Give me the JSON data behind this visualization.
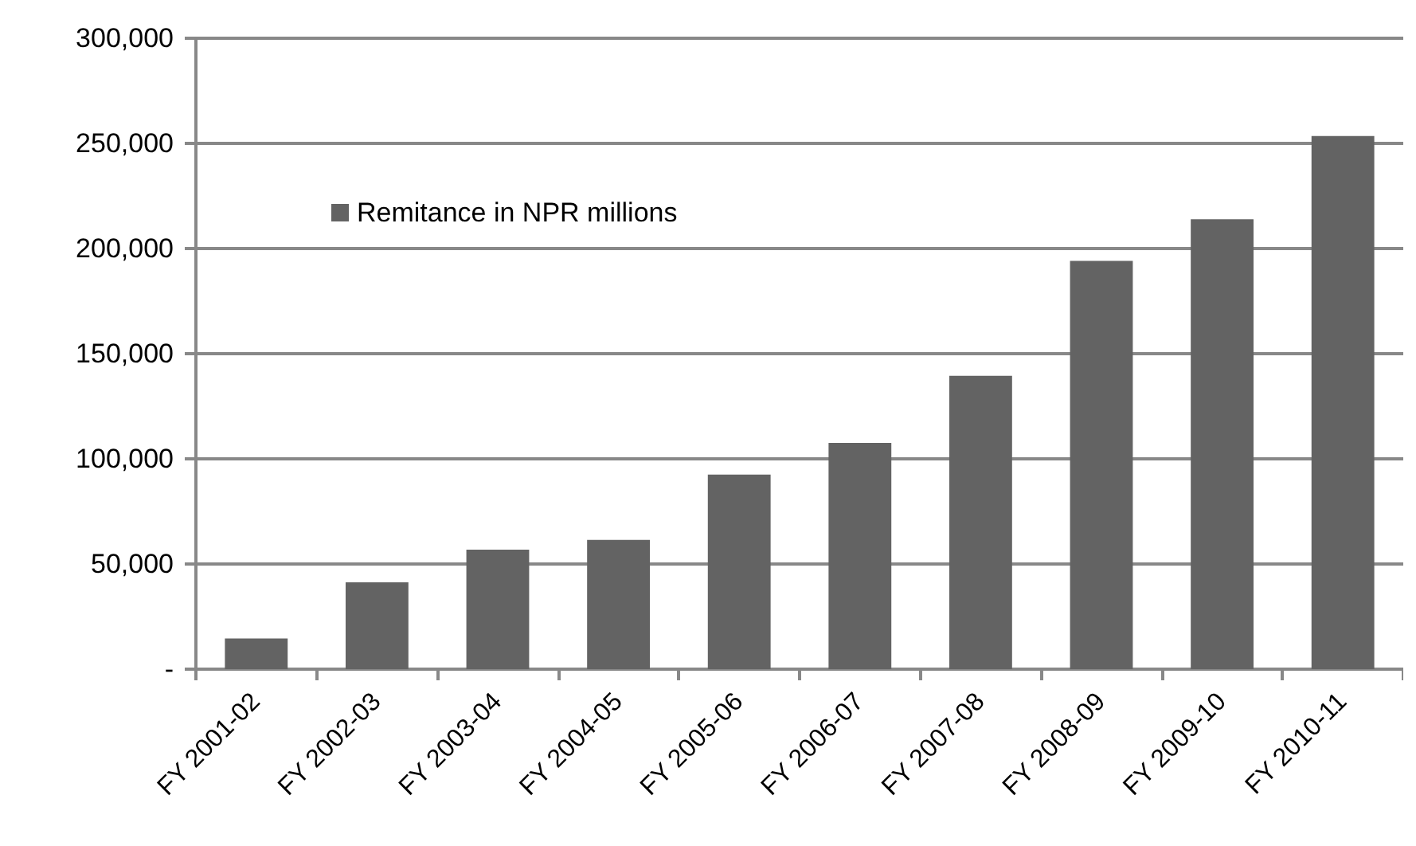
{
  "chart_data": {
    "type": "bar",
    "categories": [
      "FY 2001-02",
      "FY 2002-03",
      "FY 2003-04",
      "FY 2004-05",
      "FY 2005-06",
      "FY 2006-07",
      "FY 2007-08",
      "FY 2008-09",
      "FY 2009-10",
      "FY 2010-11"
    ],
    "series": [
      {
        "name": "Remitance in NPR millions",
        "color": "#636363",
        "values": [
          14600,
          41300,
          56800,
          61500,
          92500,
          107600,
          139500,
          194100,
          213900,
          253500
        ]
      }
    ],
    "ylim": [
      0,
      300000
    ],
    "yticks": [
      {
        "value": 0,
        "label": "-"
      },
      {
        "value": 50000,
        "label": "50,000"
      },
      {
        "value": 100000,
        "label": "100,000"
      },
      {
        "value": 150000,
        "label": "150,000"
      },
      {
        "value": 200000,
        "label": "200,000"
      },
      {
        "value": 250000,
        "label": "250,000"
      },
      {
        "value": 300000,
        "label": "300,000"
      }
    ],
    "grid": "y",
    "legend": "top left"
  }
}
